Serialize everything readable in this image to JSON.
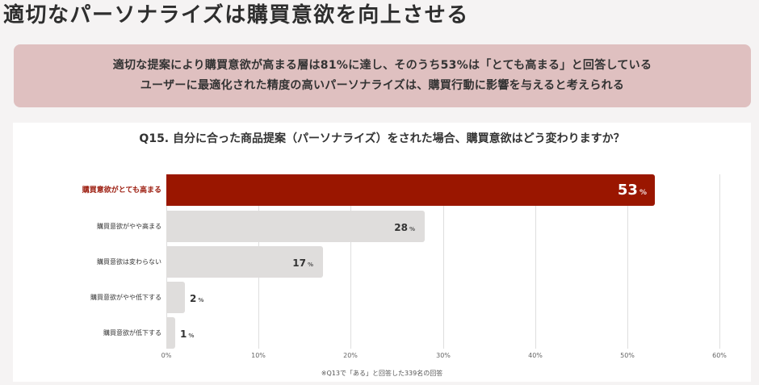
{
  "page": {
    "title": "適切なパーソナライズは購買意欲を向上させる"
  },
  "summary": {
    "line1": "適切な提案により購買意欲が高まる層は81%に達し、そのうち53%は「とても高まる」と回答している",
    "line2": "ユーザーに最適化された精度の高いパーソナライズは、購買行動に影響を与えると考えられる"
  },
  "card": {
    "question": "Q15. 自分に合った商品提案（パーソナライズ）をされた場合、購買意欲はどう変わりますか？",
    "footnote": "※Q13で「ある」と回答した339名の回答"
  },
  "colors": {
    "highlight_bar": "#9a1600",
    "normal_bar": "#dfdddc",
    "summary_bg": "#dfc0c0",
    "highlight_label": "#9b1a0c"
  },
  "chart_data": {
    "type": "bar",
    "orientation": "horizontal",
    "title": "Q15. 自分に合った商品提案（パーソナライズ）をされた場合、購買意欲はどう変わりますか？",
    "categories": [
      "購買意欲がとても高まる",
      "購買意欲がやや高まる",
      "購買意欲は変わらない",
      "購買意欲がやや低下する",
      "購買意欲が低下する"
    ],
    "values": [
      53,
      28,
      17,
      2,
      1
    ],
    "unit": "%",
    "highlight_index": 0,
    "xlabel": "",
    "ylabel": "",
    "xlim": [
      0,
      60
    ],
    "x_ticks": [
      "0%",
      "10%",
      "20%",
      "30%",
      "40%",
      "50%",
      "60%"
    ],
    "grid": true,
    "legend": "none",
    "note": "※Q13で「ある」と回答した339名の回答"
  }
}
